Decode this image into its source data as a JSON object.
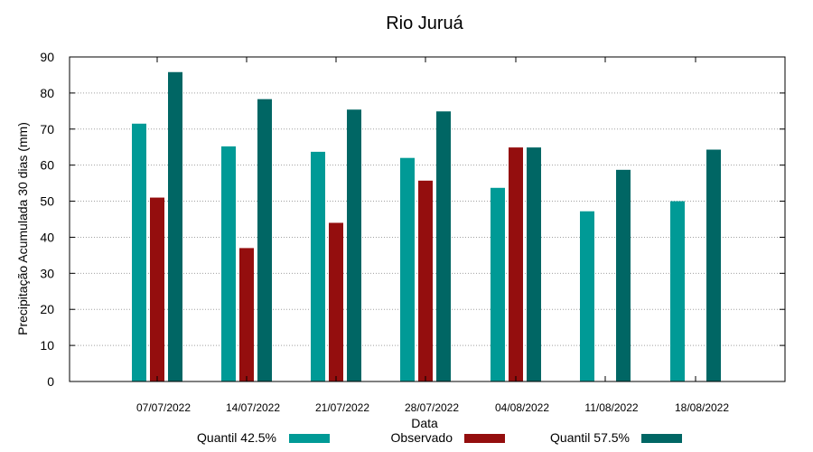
{
  "chart_data": {
    "type": "bar",
    "title": "Rio Juruá",
    "xlabel": "Data",
    "ylabel": "Precipitação Acumulada 30 dias (mm)",
    "ylim": [
      0,
      90
    ],
    "yticks": [
      0,
      10,
      20,
      30,
      40,
      50,
      60,
      70,
      80,
      90
    ],
    "grid": true,
    "legend_position": "bottom",
    "categories": [
      "07/07/2022",
      "14/07/2022",
      "21/07/2022",
      "28/07/2022",
      "04/08/2022",
      "11/08/2022",
      "18/08/2022"
    ],
    "series": [
      {
        "name": "Quantil 42.5%",
        "color": "#009a96",
        "values": [
          71.5,
          65.2,
          63.7,
          62.0,
          53.7,
          47.2,
          50.0
        ]
      },
      {
        "name": "Observado",
        "color": "#940e0e",
        "values": [
          51.0,
          37.0,
          44.0,
          55.7,
          64.9,
          null,
          null
        ]
      },
      {
        "name": "Quantil 57.5%",
        "color": "#006664",
        "values": [
          85.8,
          78.3,
          75.4,
          74.9,
          64.9,
          58.7,
          64.3
        ]
      }
    ]
  }
}
